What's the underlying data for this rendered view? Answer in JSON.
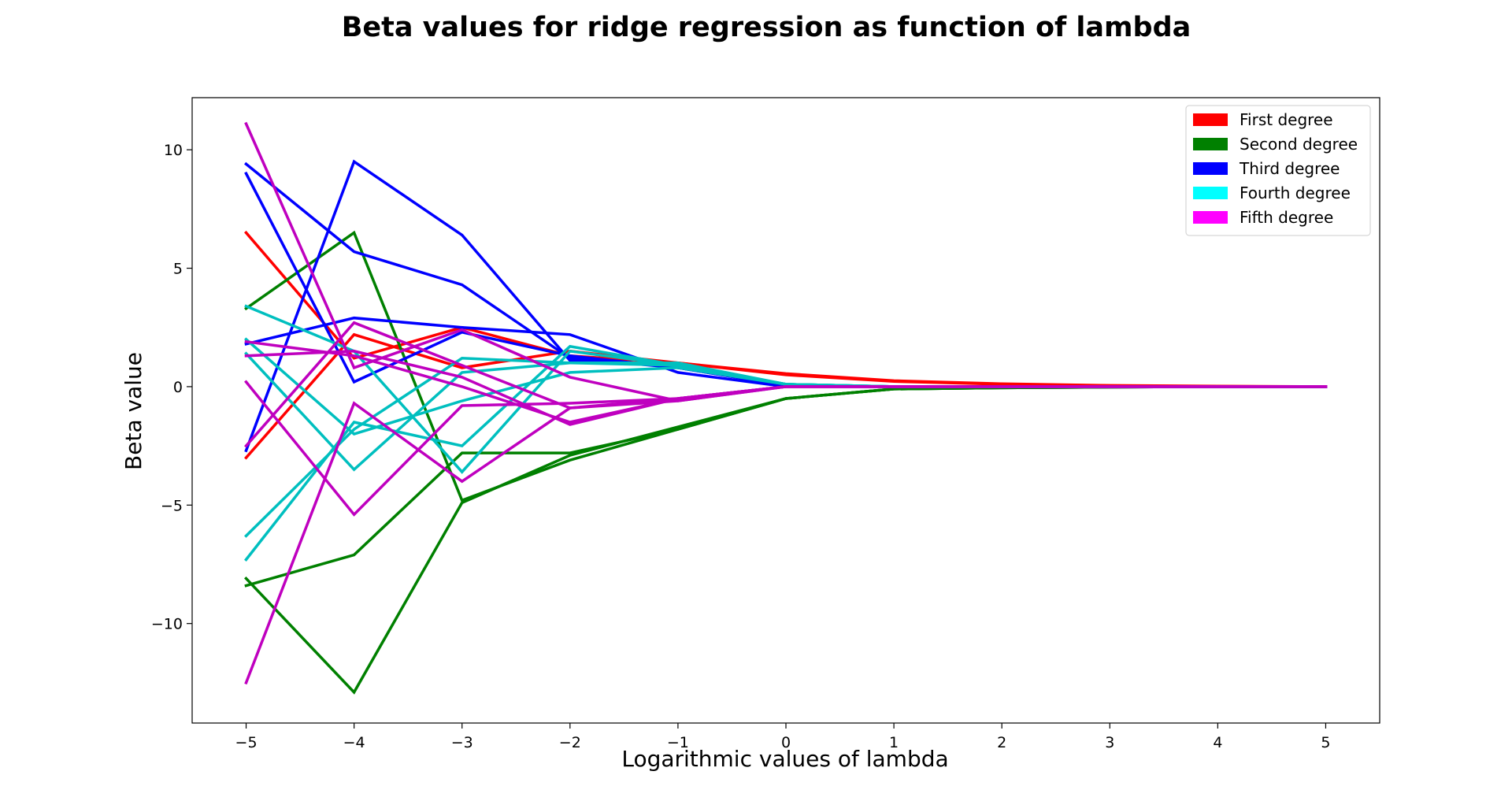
{
  "chart_data": {
    "type": "line",
    "title": "Beta values for ridge regression as function of lambda",
    "xlabel": "Logarithmic values of lambda",
    "ylabel": "Beta value",
    "xlim": [
      -5.5,
      5.5
    ],
    "ylim": [
      -14.2,
      12.2
    ],
    "x": [
      -5,
      -4,
      -3,
      -2,
      -1,
      0,
      1,
      2,
      3,
      4,
      5
    ],
    "xticks": [
      -5,
      -4,
      -3,
      -2,
      -1,
      0,
      1,
      2,
      3,
      4,
      5
    ],
    "xtick_labels": [
      "−5",
      "−4",
      "−3",
      "−2",
      "−1",
      "0",
      "1",
      "2",
      "3",
      "4",
      "5"
    ],
    "yticks": [
      10,
      5,
      0,
      -5,
      -10
    ],
    "ytick_labels": [
      "10",
      "5",
      "0",
      "−5",
      "−10"
    ],
    "grid": false,
    "legend_position": "top-right",
    "legend": [
      {
        "label": "First degree",
        "color": "#ff0000"
      },
      {
        "label": "Second degree",
        "color": "#008000"
      },
      {
        "label": "Third degree",
        "color": "#0000ff"
      },
      {
        "label": "Fourth degree",
        "color": "#00ffff"
      },
      {
        "label": "Fifth degree",
        "color": "#ff00ff"
      }
    ],
    "series": [
      {
        "color": "#ff0000",
        "values": [
          6.5,
          1.2,
          2.5,
          1.3,
          1.0,
          0.55,
          0.25,
          0.12,
          0.05,
          0.02,
          0.0
        ]
      },
      {
        "color": "#ff0000",
        "values": [
          -3.0,
          2.2,
          0.8,
          1.5,
          1.0,
          0.5,
          0.22,
          0.1,
          0.04,
          0.01,
          0.0
        ]
      },
      {
        "color": "#008000",
        "values": [
          3.3,
          6.5,
          -4.8,
          -3.1,
          -1.8,
          -0.5,
          -0.1,
          -0.05,
          -0.02,
          0.0,
          0.0
        ]
      },
      {
        "color": "#008000",
        "values": [
          -8.4,
          -7.1,
          -2.8,
          -2.8,
          -1.8,
          -0.5,
          -0.1,
          -0.05,
          -0.02,
          0.0,
          0.0
        ]
      },
      {
        "color": "#008000",
        "values": [
          -8.1,
          -12.9,
          -4.9,
          -2.9,
          -1.7,
          -0.5,
          -0.1,
          -0.05,
          -0.02,
          0.0,
          0.0
        ]
      },
      {
        "color": "#0000ff",
        "values": [
          9.0,
          0.2,
          2.3,
          1.3,
          0.8,
          0.05,
          0.0,
          0.0,
          0.0,
          0.0,
          0.0
        ]
      },
      {
        "color": "#0000ff",
        "values": [
          9.4,
          5.7,
          4.3,
          1.2,
          0.8,
          0.05,
          0.0,
          0.0,
          0.0,
          0.0,
          0.0
        ]
      },
      {
        "color": "#0000ff",
        "values": [
          -2.7,
          9.5,
          6.4,
          1.1,
          0.9,
          0.05,
          0.0,
          0.0,
          0.0,
          0.0,
          0.0
        ]
      },
      {
        "color": "#0000ff",
        "values": [
          1.8,
          2.9,
          2.5,
          2.2,
          0.6,
          0.0,
          0.0,
          0.0,
          0.0,
          0.0,
          0.0
        ]
      },
      {
        "color": "#00bfbf",
        "values": [
          3.4,
          1.5,
          -3.6,
          1.5,
          0.9,
          0.1,
          0.0,
          0.0,
          0.0,
          0.0,
          0.0
        ]
      },
      {
        "color": "#00bfbf",
        "values": [
          2.0,
          -2.0,
          -0.6,
          0.6,
          0.8,
          0.1,
          0.0,
          0.0,
          0.0,
          0.0,
          0.0
        ]
      },
      {
        "color": "#00bfbf",
        "values": [
          -6.3,
          -1.8,
          1.2,
          1.0,
          0.9,
          0.1,
          0.0,
          0.0,
          0.0,
          0.0,
          0.0
        ]
      },
      {
        "color": "#00bfbf",
        "values": [
          -7.3,
          -1.5,
          -2.5,
          1.7,
          0.9,
          0.1,
          0.0,
          0.0,
          0.0,
          0.0,
          0.0
        ]
      },
      {
        "color": "#00bfbf",
        "values": [
          1.4,
          -3.5,
          0.6,
          1.0,
          1.0,
          0.1,
          0.0,
          0.0,
          0.0,
          0.0,
          0.0
        ]
      },
      {
        "color": "#bf00bf",
        "values": [
          11.1,
          0.8,
          2.4,
          0.4,
          -0.6,
          0.0,
          0.0,
          0.0,
          0.0,
          0.0,
          0.0
        ]
      },
      {
        "color": "#bf00bf",
        "values": [
          1.9,
          1.3,
          0.0,
          -1.5,
          -0.5,
          0.0,
          0.0,
          0.0,
          0.0,
          0.0,
          0.0
        ]
      },
      {
        "color": "#bf00bf",
        "values": [
          1.3,
          1.5,
          0.4,
          -1.6,
          -0.5,
          0.0,
          0.0,
          0.0,
          0.0,
          0.0,
          0.0
        ]
      },
      {
        "color": "#bf00bf",
        "values": [
          0.2,
          -5.4,
          -0.8,
          -0.7,
          -0.5,
          0.0,
          0.0,
          0.0,
          0.0,
          0.0,
          0.0
        ]
      },
      {
        "color": "#bf00bf",
        "values": [
          -12.5,
          -0.7,
          -4.0,
          -0.9,
          -0.6,
          0.0,
          0.0,
          0.0,
          0.0,
          0.0,
          0.0
        ]
      },
      {
        "color": "#bf00bf",
        "values": [
          -2.5,
          2.7,
          0.9,
          -0.9,
          -0.5,
          0.0,
          0.0,
          0.0,
          0.0,
          0.0,
          0.0
        ]
      }
    ]
  }
}
